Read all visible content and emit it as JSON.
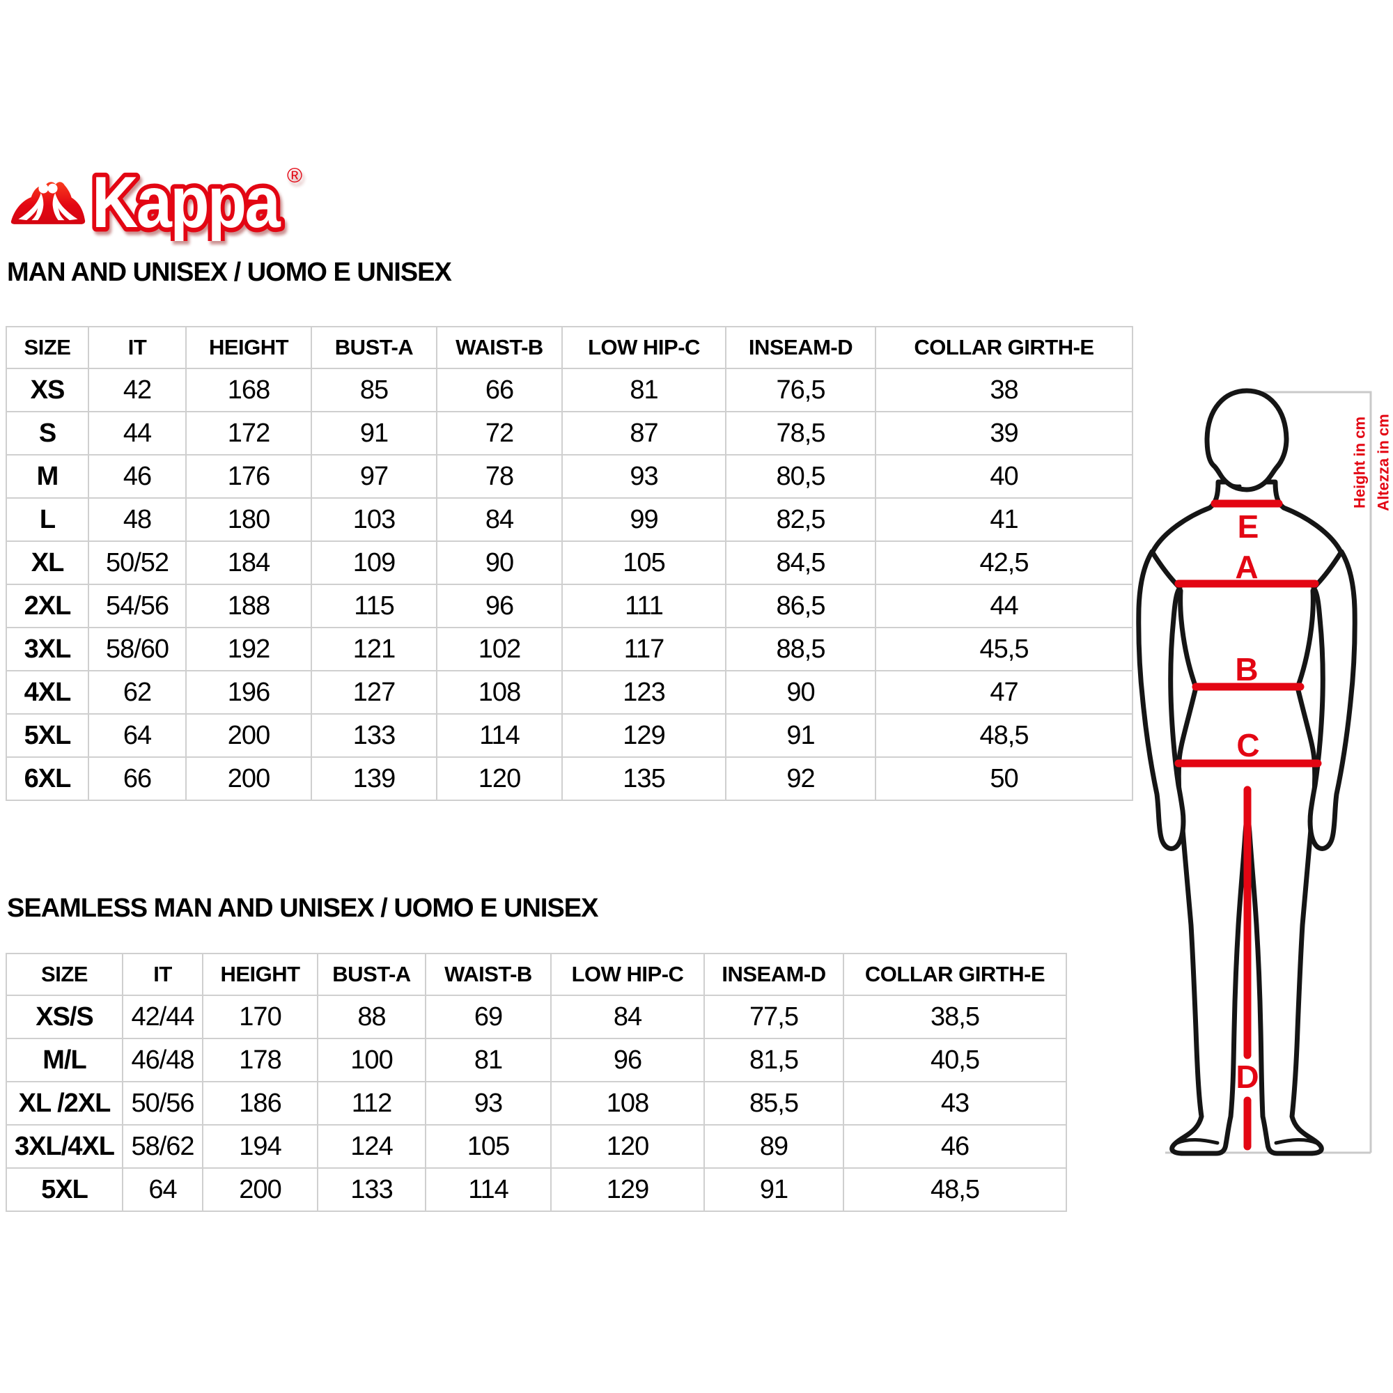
{
  "brand": {
    "wordmark": "Kappa",
    "registered": "®",
    "logo_icon": "kappa-omini-back-to-back-figures",
    "brand_red": "#e30613"
  },
  "sections": [
    {
      "title": "MAN AND UNISEX / UOMO E UNISEX",
      "columns": [
        "SIZE",
        "IT",
        "HEIGHT",
        "BUST-A",
        "WAIST-B",
        "LOW HIP-C",
        "INSEAM-D",
        "COLLAR GIRTH-E"
      ],
      "rows": [
        [
          "XS",
          "42",
          "168",
          "85",
          "66",
          "81",
          "76,5",
          "38"
        ],
        [
          "S",
          "44",
          "172",
          "91",
          "72",
          "87",
          "78,5",
          "39"
        ],
        [
          "M",
          "46",
          "176",
          "97",
          "78",
          "93",
          "80,5",
          "40"
        ],
        [
          "L",
          "48",
          "180",
          "103",
          "84",
          "99",
          "82,5",
          "41"
        ],
        [
          "XL",
          "50/52",
          "184",
          "109",
          "90",
          "105",
          "84,5",
          "42,5"
        ],
        [
          "2XL",
          "54/56",
          "188",
          "115",
          "96",
          "111",
          "86,5",
          "44"
        ],
        [
          "3XL",
          "58/60",
          "192",
          "121",
          "102",
          "117",
          "88,5",
          "45,5"
        ],
        [
          "4XL",
          "62",
          "196",
          "127",
          "108",
          "123",
          "90",
          "47"
        ],
        [
          "5XL",
          "64",
          "200",
          "133",
          "114",
          "129",
          "91",
          "48,5"
        ],
        [
          "6XL",
          "66",
          "200",
          "139",
          "120",
          "135",
          "92",
          "50"
        ]
      ]
    },
    {
      "title": "SEAMLESS MAN AND UNISEX / UOMO E UNISEX",
      "columns": [
        "SIZE",
        "IT",
        "HEIGHT",
        "BUST-A",
        "WAIST-B",
        "LOW HIP-C",
        "INSEAM-D",
        "COLLAR GIRTH-E"
      ],
      "rows": [
        [
          "XS/S",
          "42/44",
          "170",
          "88",
          "69",
          "84",
          "77,5",
          "38,5"
        ],
        [
          "M/L",
          "46/48",
          "178",
          "100",
          "81",
          "96",
          "81,5",
          "40,5"
        ],
        [
          "XL /2XL",
          "50/56",
          "186",
          "112",
          "93",
          "108",
          "85,5",
          "43"
        ],
        [
          "3XL/4XL",
          "58/62",
          "194",
          "124",
          "105",
          "120",
          "89",
          "46"
        ],
        [
          "5XL",
          "64",
          "200",
          "133",
          "114",
          "129",
          "91",
          "48,5"
        ]
      ]
    }
  ],
  "diagram": {
    "labels": {
      "collar": "E",
      "bust": "A",
      "waist": "B",
      "hip": "C",
      "inseam": "D"
    },
    "height_note_en": "Height in cm",
    "height_note_it": "Altezza in cm",
    "accent_red": "#e30613",
    "guide_gray": "#c9c9c9"
  }
}
